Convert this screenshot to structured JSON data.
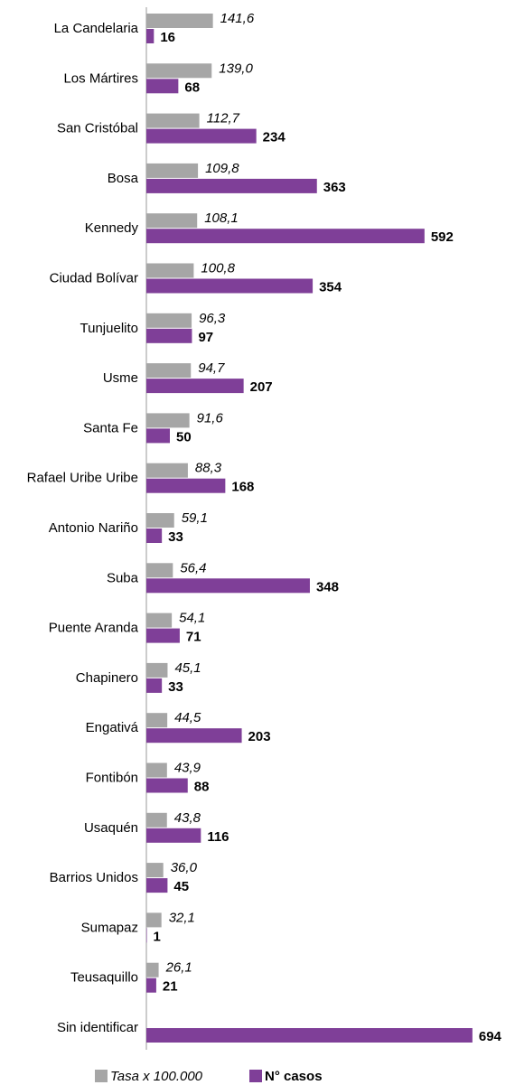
{
  "chart_data": {
    "type": "hbar",
    "categories": [
      "La Candelaria",
      "Los Mártires",
      "San Cristóbal",
      "Bosa",
      "Kennedy",
      "Ciudad Bolívar",
      "Tunjuelito",
      "Usme",
      "Santa Fe",
      "Rafael Uribe Uribe",
      "Antonio Nariño",
      "Suba",
      "Puente Aranda",
      "Chapinero",
      "Engativá",
      "Fontibón",
      "Usaquén",
      "Barrios Unidos",
      "Sumapaz",
      "Teusaquillo",
      "Sin identificar"
    ],
    "series": [
      {
        "name": "Tasa x 100.000",
        "color": "#a6a6a6",
        "values": [
          141.6,
          139.0,
          112.7,
          109.8,
          108.1,
          100.8,
          96.3,
          94.7,
          91.6,
          88.3,
          59.1,
          56.4,
          54.1,
          45.1,
          44.5,
          43.9,
          43.8,
          36.0,
          32.1,
          26.1,
          null
        ],
        "value_labels": [
          "141,6",
          "139,0",
          "112,7",
          "109,8",
          "108,1",
          "100,8",
          "96,3",
          "94,7",
          "91,6",
          "88,3",
          "59,1",
          "56,4",
          "54,1",
          "45,1",
          "44,5",
          "43,9",
          "43,8",
          "36,0",
          "32,1",
          "26,1",
          null
        ]
      },
      {
        "name": "N° casos",
        "color": "#7f3f98",
        "values": [
          16,
          68,
          234,
          363,
          592,
          354,
          97,
          207,
          50,
          168,
          33,
          348,
          71,
          33,
          203,
          88,
          116,
          45,
          1,
          21,
          694
        ]
      }
    ]
  }
}
